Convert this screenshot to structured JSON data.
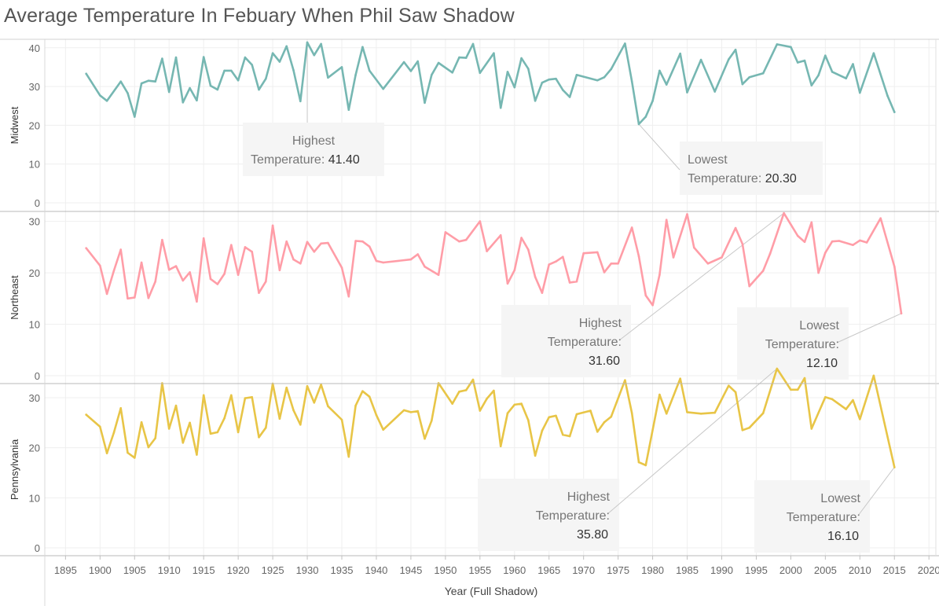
{
  "title": "Average Temperature In Febuary When Phil Saw Shadow",
  "chart_data": {
    "type": "line",
    "xlabel": "Year (Full Shadow)",
    "xlim": [
      1892,
      2021
    ],
    "x_ticks": [
      1895,
      1900,
      1905,
      1910,
      1915,
      1920,
      1925,
      1930,
      1935,
      1940,
      1945,
      1950,
      1955,
      1960,
      1965,
      1970,
      1975,
      1980,
      1985,
      1990,
      1995,
      2000,
      2005,
      2010,
      2015,
      2020
    ],
    "grid": true,
    "panels": [
      {
        "label": "Midwest",
        "color": "#76b7b2",
        "ylim": [
          0,
          43
        ],
        "y_ticks": [
          0,
          10,
          20,
          30,
          40
        ],
        "points": [
          [
            1898,
            33.3
          ],
          [
            1900,
            27.7
          ],
          [
            1901,
            26.3
          ],
          [
            1903,
            31.3
          ],
          [
            1904,
            28.3
          ],
          [
            1905,
            22.2
          ],
          [
            1906,
            30.8
          ],
          [
            1907,
            31.5
          ],
          [
            1908,
            31.3
          ],
          [
            1909,
            37.2
          ],
          [
            1910,
            28.6
          ],
          [
            1911,
            37.5
          ],
          [
            1912,
            25.9
          ],
          [
            1913,
            29.6
          ],
          [
            1914,
            26.4
          ],
          [
            1915,
            37.6
          ],
          [
            1916,
            30.2
          ],
          [
            1917,
            29.2
          ],
          [
            1918,
            34.1
          ],
          [
            1919,
            34.1
          ],
          [
            1920,
            31.6
          ],
          [
            1921,
            37.5
          ],
          [
            1922,
            35.6
          ],
          [
            1923,
            29.2
          ],
          [
            1924,
            32.0
          ],
          [
            1925,
            38.6
          ],
          [
            1926,
            36.4
          ],
          [
            1927,
            40.4
          ],
          [
            1928,
            34.2
          ],
          [
            1929,
            26.2
          ],
          [
            1930,
            41.4
          ],
          [
            1931,
            38.1
          ],
          [
            1932,
            41.0
          ],
          [
            1933,
            32.3
          ],
          [
            1935,
            35.0
          ],
          [
            1936,
            24.0
          ],
          [
            1937,
            33.0
          ],
          [
            1938,
            40.2
          ],
          [
            1939,
            34.1
          ],
          [
            1941,
            29.4
          ],
          [
            1944,
            36.3
          ],
          [
            1945,
            34.0
          ],
          [
            1946,
            36.5
          ],
          [
            1947,
            25.8
          ],
          [
            1948,
            33.0
          ],
          [
            1949,
            36.1
          ],
          [
            1951,
            33.6
          ],
          [
            1952,
            37.5
          ],
          [
            1953,
            37.4
          ],
          [
            1954,
            41.0
          ],
          [
            1955,
            33.5
          ],
          [
            1957,
            38.6
          ],
          [
            1958,
            24.5
          ],
          [
            1959,
            33.8
          ],
          [
            1960,
            29.8
          ],
          [
            1961,
            37.3
          ],
          [
            1962,
            34.6
          ],
          [
            1963,
            26.3
          ],
          [
            1964,
            31.0
          ],
          [
            1965,
            31.8
          ],
          [
            1966,
            32.0
          ],
          [
            1967,
            29.1
          ],
          [
            1968,
            27.3
          ],
          [
            1969,
            33.0
          ],
          [
            1972,
            31.6
          ],
          [
            1973,
            32.4
          ],
          [
            1974,
            34.5
          ],
          [
            1976,
            41.1
          ],
          [
            1977,
            31.3
          ],
          [
            1978,
            20.3
          ],
          [
            1979,
            22.2
          ],
          [
            1980,
            26.3
          ],
          [
            1981,
            34.1
          ],
          [
            1982,
            30.5
          ],
          [
            1984,
            38.5
          ],
          [
            1985,
            28.5
          ],
          [
            1987,
            36.9
          ],
          [
            1989,
            28.7
          ],
          [
            1991,
            37.0
          ],
          [
            1992,
            39.5
          ],
          [
            1993,
            30.6
          ],
          [
            1994,
            32.4
          ],
          [
            1996,
            33.4
          ],
          [
            1998,
            40.9
          ],
          [
            2000,
            40.2
          ],
          [
            2001,
            36.2
          ],
          [
            2002,
            36.7
          ],
          [
            2003,
            30.3
          ],
          [
            2004,
            32.9
          ],
          [
            2005,
            38.0
          ],
          [
            2006,
            33.8
          ],
          [
            2008,
            32.1
          ],
          [
            2009,
            35.8
          ],
          [
            2010,
            28.4
          ],
          [
            2012,
            38.6
          ],
          [
            2014,
            27.6
          ],
          [
            2015,
            23.4
          ]
        ],
        "annotations": [
          {
            "label": "Highest Temperature:",
            "value": "41.40",
            "x": 1930,
            "y": 41.4
          },
          {
            "label": "Lowest Temperature:",
            "value": "20.30",
            "x": 1978,
            "y": 20.3
          }
        ]
      },
      {
        "label": "Northeast",
        "color": "#ff9da7",
        "ylim": [
          0,
          33
        ],
        "y_ticks": [
          0,
          10,
          20,
          30
        ],
        "points": [
          [
            1898,
            24.8
          ],
          [
            1900,
            21.4
          ],
          [
            1901,
            15.9
          ],
          [
            1902,
            20.4
          ],
          [
            1903,
            24.5
          ],
          [
            1904,
            15.0
          ],
          [
            1905,
            15.2
          ],
          [
            1906,
            22.0
          ],
          [
            1907,
            15.1
          ],
          [
            1908,
            18.3
          ],
          [
            1909,
            26.4
          ],
          [
            1910,
            20.6
          ],
          [
            1911,
            21.3
          ],
          [
            1912,
            18.5
          ],
          [
            1913,
            20.1
          ],
          [
            1914,
            14.4
          ],
          [
            1915,
            26.7
          ],
          [
            1916,
            18.8
          ],
          [
            1917,
            17.8
          ],
          [
            1918,
            19.8
          ],
          [
            1919,
            25.4
          ],
          [
            1920,
            19.6
          ],
          [
            1921,
            25.0
          ],
          [
            1922,
            24.1
          ],
          [
            1923,
            16.1
          ],
          [
            1924,
            18.3
          ],
          [
            1925,
            29.2
          ],
          [
            1926,
            20.5
          ],
          [
            1927,
            26.1
          ],
          [
            1928,
            22.6
          ],
          [
            1929,
            21.8
          ],
          [
            1930,
            26.0
          ],
          [
            1931,
            24.1
          ],
          [
            1932,
            25.7
          ],
          [
            1933,
            25.8
          ],
          [
            1935,
            21.0
          ],
          [
            1936,
            15.4
          ],
          [
            1937,
            26.2
          ],
          [
            1938,
            26.1
          ],
          [
            1939,
            25.1
          ],
          [
            1940,
            22.3
          ],
          [
            1941,
            22.0
          ],
          [
            1945,
            22.6
          ],
          [
            1946,
            23.6
          ],
          [
            1947,
            21.2
          ],
          [
            1949,
            19.6
          ],
          [
            1950,
            27.9
          ],
          [
            1952,
            26.1
          ],
          [
            1953,
            26.4
          ],
          [
            1955,
            30.0
          ],
          [
            1956,
            24.2
          ],
          [
            1958,
            27.3
          ],
          [
            1959,
            17.9
          ],
          [
            1960,
            20.5
          ],
          [
            1961,
            26.8
          ],
          [
            1962,
            24.5
          ],
          [
            1963,
            19.2
          ],
          [
            1964,
            16.1
          ],
          [
            1965,
            21.6
          ],
          [
            1966,
            22.2
          ],
          [
            1967,
            23.1
          ],
          [
            1968,
            18.1
          ],
          [
            1969,
            18.3
          ],
          [
            1970,
            23.8
          ],
          [
            1972,
            24.0
          ],
          [
            1973,
            20.1
          ],
          [
            1974,
            21.8
          ],
          [
            1975,
            21.8
          ],
          [
            1977,
            28.8
          ],
          [
            1978,
            23.2
          ],
          [
            1979,
            15.6
          ],
          [
            1980,
            13.7
          ],
          [
            1981,
            19.6
          ],
          [
            1982,
            30.3
          ],
          [
            1983,
            23.0
          ],
          [
            1985,
            31.4
          ],
          [
            1986,
            24.9
          ],
          [
            1988,
            21.8
          ],
          [
            1990,
            23.0
          ],
          [
            1992,
            28.7
          ],
          [
            1993,
            25.6
          ],
          [
            1994,
            17.4
          ],
          [
            1996,
            20.4
          ],
          [
            1997,
            23.7
          ],
          [
            1999,
            31.6
          ],
          [
            2000,
            29.4
          ],
          [
            2001,
            27.2
          ],
          [
            2002,
            26.0
          ],
          [
            2003,
            29.8
          ],
          [
            2004,
            20.0
          ],
          [
            2005,
            23.9
          ],
          [
            2006,
            26.1
          ],
          [
            2007,
            26.2
          ],
          [
            2009,
            25.4
          ],
          [
            2010,
            26.3
          ],
          [
            2011,
            25.9
          ],
          [
            2013,
            30.6
          ],
          [
            2015,
            21.2
          ],
          [
            2016,
            12.1
          ]
        ],
        "annotations": [
          {
            "label": "Highest Temperature:",
            "value": "31.60",
            "x": 1999,
            "y": 31.6
          },
          {
            "label": "Lowest Temperature:",
            "value": "12.10",
            "x": 2016,
            "y": 12.1
          }
        ]
      },
      {
        "label": "Pennsylvania",
        "color": "#e8c547",
        "ylim": [
          0,
          38
        ],
        "y_ticks": [
          0,
          10,
          20,
          30
        ],
        "points": [
          [
            1898,
            26.6
          ],
          [
            1900,
            24.2
          ],
          [
            1901,
            18.9
          ],
          [
            1902,
            23.0
          ],
          [
            1903,
            27.9
          ],
          [
            1904,
            19.0
          ],
          [
            1905,
            18.0
          ],
          [
            1906,
            25.1
          ],
          [
            1907,
            20.1
          ],
          [
            1908,
            21.9
          ],
          [
            1909,
            32.9
          ],
          [
            1910,
            23.8
          ],
          [
            1911,
            28.4
          ],
          [
            1912,
            21.0
          ],
          [
            1913,
            25.0
          ],
          [
            1914,
            18.6
          ],
          [
            1915,
            30.5
          ],
          [
            1916,
            22.8
          ],
          [
            1917,
            23.1
          ],
          [
            1918,
            25.9
          ],
          [
            1919,
            30.5
          ],
          [
            1920,
            23.1
          ],
          [
            1921,
            29.9
          ],
          [
            1922,
            30.1
          ],
          [
            1923,
            22.1
          ],
          [
            1924,
            24.0
          ],
          [
            1925,
            32.8
          ],
          [
            1926,
            25.8
          ],
          [
            1927,
            32.0
          ],
          [
            1928,
            27.5
          ],
          [
            1929,
            24.6
          ],
          [
            1930,
            32.3
          ],
          [
            1931,
            29.0
          ],
          [
            1932,
            32.6
          ],
          [
            1933,
            28.3
          ],
          [
            1935,
            25.6
          ],
          [
            1936,
            18.2
          ],
          [
            1937,
            28.4
          ],
          [
            1938,
            31.3
          ],
          [
            1939,
            30.2
          ],
          [
            1940,
            26.5
          ],
          [
            1941,
            23.6
          ],
          [
            1944,
            27.5
          ],
          [
            1945,
            27.1
          ],
          [
            1946,
            27.3
          ],
          [
            1947,
            21.8
          ],
          [
            1948,
            25.4
          ],
          [
            1949,
            32.9
          ],
          [
            1951,
            28.8
          ],
          [
            1952,
            31.2
          ],
          [
            1953,
            31.5
          ],
          [
            1954,
            33.6
          ],
          [
            1955,
            27.4
          ],
          [
            1956,
            29.8
          ],
          [
            1957,
            31.4
          ],
          [
            1958,
            20.3
          ],
          [
            1959,
            26.9
          ],
          [
            1960,
            28.6
          ],
          [
            1961,
            28.8
          ],
          [
            1962,
            25.5
          ],
          [
            1963,
            18.4
          ],
          [
            1964,
            23.4
          ],
          [
            1965,
            26.1
          ],
          [
            1966,
            26.4
          ],
          [
            1967,
            22.6
          ],
          [
            1968,
            22.3
          ],
          [
            1969,
            26.7
          ],
          [
            1971,
            27.4
          ],
          [
            1972,
            23.2
          ],
          [
            1973,
            25.1
          ],
          [
            1974,
            26.2
          ],
          [
            1976,
            33.5
          ],
          [
            1977,
            26.9
          ],
          [
            1978,
            17.1
          ],
          [
            1979,
            16.5
          ],
          [
            1981,
            30.6
          ],
          [
            1982,
            26.8
          ],
          [
            1984,
            33.8
          ],
          [
            1985,
            27.1
          ],
          [
            1987,
            26.8
          ],
          [
            1989,
            27.0
          ],
          [
            1991,
            32.4
          ],
          [
            1992,
            31.1
          ],
          [
            1993,
            23.5
          ],
          [
            1994,
            24.0
          ],
          [
            1996,
            26.9
          ],
          [
            1998,
            35.8
          ],
          [
            2000,
            31.6
          ],
          [
            2001,
            31.6
          ],
          [
            2002,
            33.9
          ],
          [
            2003,
            23.8
          ],
          [
            2005,
            30.1
          ],
          [
            2006,
            29.7
          ],
          [
            2008,
            27.7
          ],
          [
            2009,
            29.5
          ],
          [
            2010,
            25.7
          ],
          [
            2012,
            34.4
          ],
          [
            2015,
            16.1
          ]
        ],
        "annotations": [
          {
            "label": "Highest Temperature:",
            "value": "35.80",
            "x": 1998,
            "y": 35.8
          },
          {
            "label": "Lowest Temperature:",
            "value": "16.10",
            "x": 2015,
            "y": 16.1
          }
        ]
      }
    ]
  }
}
